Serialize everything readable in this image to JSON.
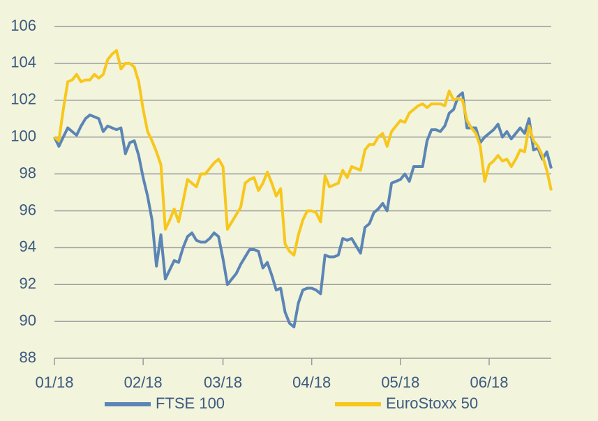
{
  "chart_data": {
    "type": "line",
    "categories": [
      "01/18",
      null,
      null,
      null,
      null,
      null,
      null,
      null,
      null,
      null,
      null,
      null,
      null,
      null,
      null,
      null,
      null,
      null,
      null,
      null,
      "02/18",
      null,
      null,
      null,
      null,
      null,
      null,
      null,
      null,
      null,
      null,
      null,
      null,
      null,
      null,
      null,
      null,
      null,
      "03/18",
      null,
      null,
      null,
      null,
      null,
      null,
      null,
      null,
      null,
      null,
      null,
      null,
      null,
      null,
      null,
      null,
      null,
      null,
      null,
      "04/18",
      null,
      null,
      null,
      null,
      null,
      null,
      null,
      null,
      null,
      null,
      null,
      null,
      null,
      null,
      null,
      null,
      null,
      null,
      null,
      "05/18",
      null,
      null,
      null,
      null,
      null,
      null,
      null,
      null,
      null,
      null,
      null,
      null,
      null,
      null,
      null,
      null,
      null,
      null,
      null,
      "06/18",
      null,
      null,
      null,
      null,
      null,
      null,
      null,
      null,
      null,
      null,
      null,
      null,
      null,
      null
    ],
    "series": [
      {
        "name": "FTSE 100",
        "color": "#5b85b5",
        "values": [
          100,
          99.5,
          100,
          100.5,
          100.3,
          100.1,
          100.6,
          101,
          101.2,
          101.1,
          101,
          100.3,
          100.6,
          100.5,
          100.4,
          100.5,
          99.1,
          99.7,
          99.8,
          99.0,
          97.8,
          96.8,
          95.5,
          93.0,
          94.7,
          92.3,
          92.8,
          93.3,
          93.2,
          94,
          94.6,
          94.8,
          94.4,
          94.3,
          94.3,
          94.5,
          94.8,
          94.6,
          93.4,
          92,
          92.3,
          92.6,
          93.1,
          93.5,
          93.9,
          93.9,
          93.8,
          92.9,
          93.2,
          92.5,
          91.7,
          91.8,
          90.5,
          89.9,
          89.7,
          91,
          91.7,
          91.8,
          91.8,
          91.7,
          91.5,
          93.6,
          93.5,
          93.5,
          93.6,
          94.5,
          94.4,
          94.5,
          94.1,
          93.7,
          95.1,
          95.3,
          95.9,
          96.1,
          96.4,
          96,
          97.5,
          97.6,
          97.7,
          98,
          97.6,
          98.4,
          98.4,
          98.4,
          99.8,
          100.4,
          100.4,
          100.3,
          100.6,
          101.3,
          101.5,
          102.2,
          102.4,
          100.5,
          100.5,
          100.5,
          99.7,
          100,
          100.2,
          100.4,
          100.7,
          100,
          100.3,
          99.9,
          100.2,
          100.5,
          100.2,
          101,
          99.3,
          99.4,
          98.8,
          99.2,
          98.3
        ]
      },
      {
        "name": "EuroStoxx 50",
        "color": "#f7c71c",
        "values": [
          100,
          99.8,
          101.5,
          103,
          103.1,
          103.4,
          103,
          103.1,
          103.1,
          103.4,
          103.2,
          103.4,
          104.2,
          104.5,
          104.7,
          103.7,
          104,
          104,
          103.8,
          103,
          101.5,
          100.3,
          99.8,
          99.2,
          98.5,
          95,
          95.5,
          96.1,
          95.4,
          96.5,
          97.7,
          97.5,
          97.3,
          98,
          98,
          98.3,
          98.6,
          98.8,
          98.4,
          95,
          95.4,
          95.8,
          96.2,
          97.5,
          97.7,
          97.8,
          97.1,
          97.5,
          98.1,
          97.5,
          96.8,
          97.2,
          94.2,
          93.8,
          93.6,
          94.7,
          95.5,
          96,
          96,
          95.9,
          95.4,
          97.9,
          97.3,
          97.4,
          97.5,
          98.2,
          97.8,
          98.4,
          98.3,
          98.2,
          99.3,
          99.6,
          99.6,
          100,
          100.2,
          99.5,
          100.3,
          100.6,
          100.9,
          100.8,
          101.3,
          101.5,
          101.7,
          101.8,
          101.6,
          101.8,
          101.8,
          101.8,
          101.7,
          102.5,
          102,
          102.1,
          102,
          100.9,
          100.5,
          100.2,
          99.5,
          97.6,
          98.5,
          98.7,
          99,
          98.7,
          98.8,
          98.4,
          98.8,
          99.3,
          99.2,
          100.6,
          99.8,
          99.5,
          99,
          98.2,
          97.1
        ]
      }
    ],
    "ylim": [
      88,
      106
    ],
    "yticks": [
      88,
      90,
      92,
      94,
      96,
      98,
      100,
      102,
      104,
      106
    ],
    "grid": true,
    "legend": "bottom"
  }
}
